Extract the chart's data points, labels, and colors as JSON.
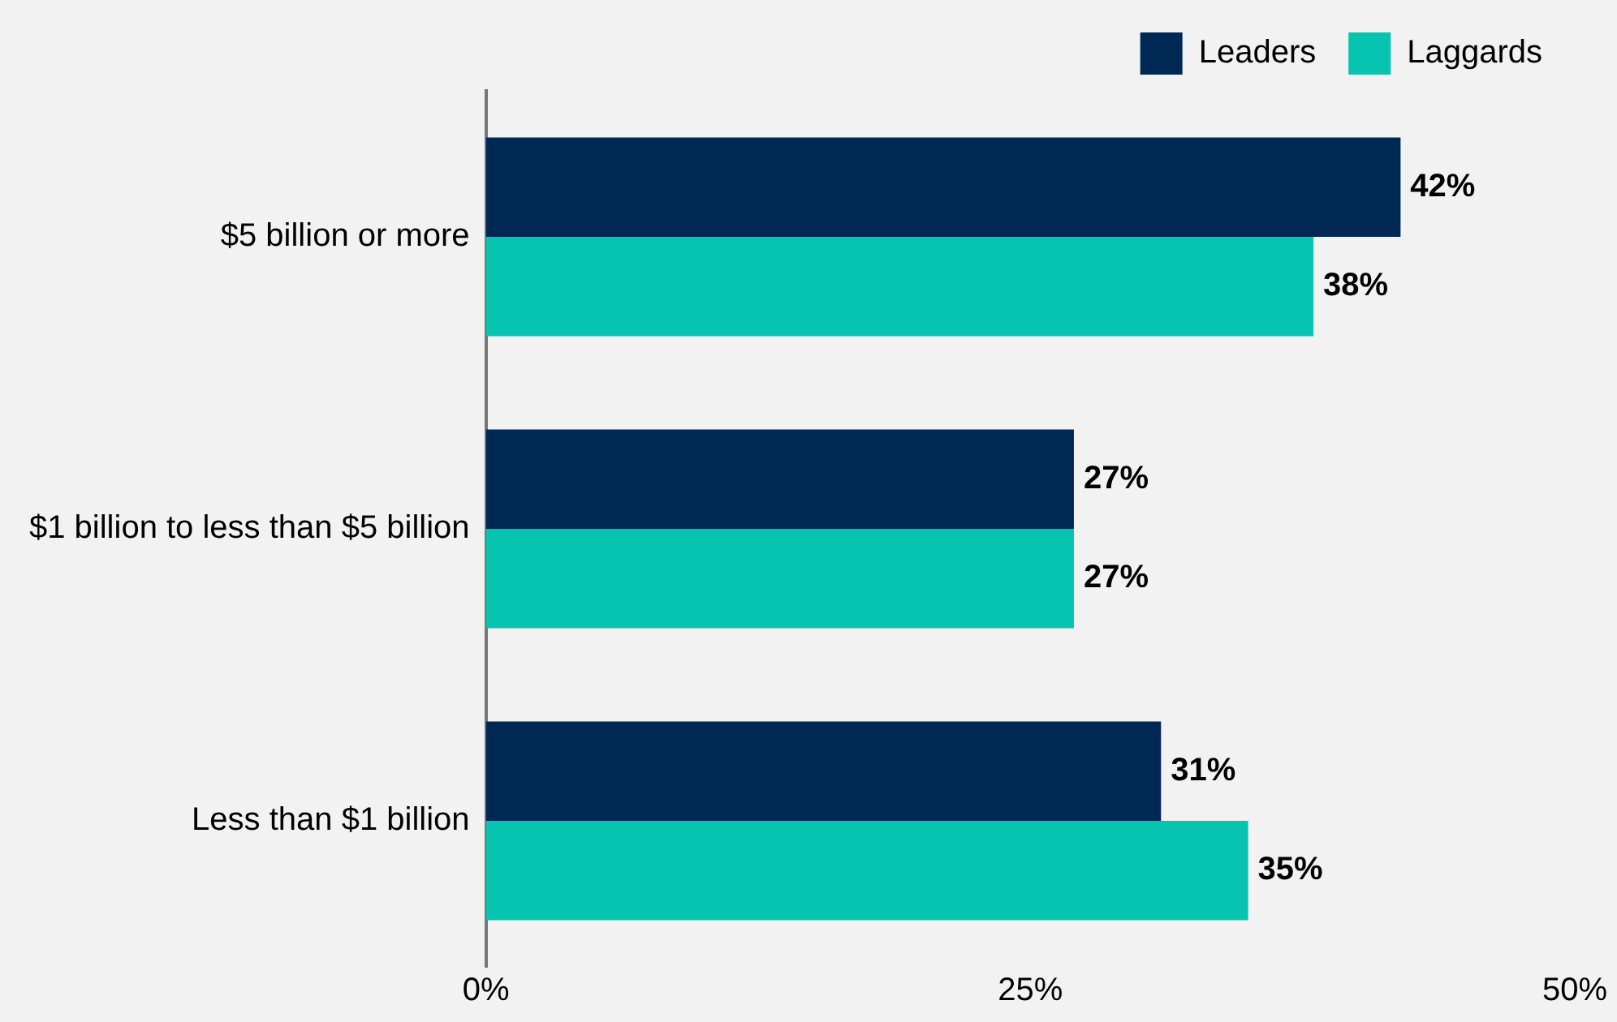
{
  "chart_data": {
    "type": "bar",
    "orientation": "horizontal",
    "categories": [
      "$5 billion or more",
      "$1 billion to less than $5 billion",
      "Less than $1 billion"
    ],
    "series": [
      {
        "name": "Leaders",
        "color": "#002855",
        "values": [
          42,
          27,
          31
        ]
      },
      {
        "name": "Laggards",
        "color": "#07c4b1",
        "values": [
          38,
          27,
          35
        ]
      }
    ],
    "xlim": [
      0,
      50
    ],
    "xticks": [
      {
        "value": 0,
        "label": "0%"
      },
      {
        "value": 25,
        "label": "25%"
      },
      {
        "value": 50,
        "label": "50%"
      }
    ],
    "value_labels": [
      [
        "42%",
        "27%",
        "31%"
      ],
      [
        "38%",
        "27%",
        "35%"
      ]
    ],
    "grid": false,
    "legend": "top right"
  }
}
